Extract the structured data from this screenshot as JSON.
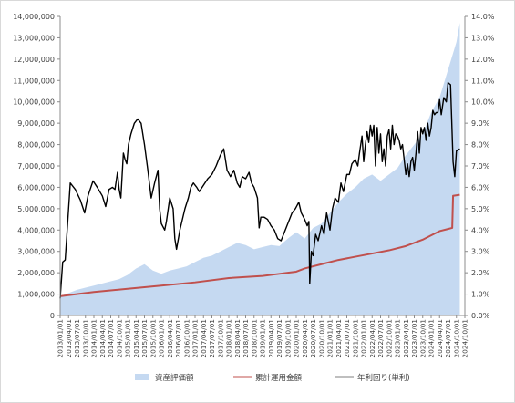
{
  "chart_data": {
    "type": "combo",
    "title": "",
    "xlabel": "",
    "ylabel": "",
    "ylim": [
      0,
      14000000
    ],
    "y2lim": [
      0,
      14.0
    ],
    "y_ticks": [
      "0",
      "1,000,000",
      "2,000,000",
      "3,000,000",
      "4,000,000",
      "5,000,000",
      "6,000,000",
      "7,000,000",
      "8,000,000",
      "9,000,000",
      "10,000,000",
      "11,000,000",
      "12,000,000",
      "13,000,000",
      "14,000,000"
    ],
    "y2_ticks": [
      "0.0%",
      "1.0%",
      "2.0%",
      "3.0%",
      "4.0%",
      "5.0%",
      "6.0%",
      "7.0%",
      "8.0%",
      "9.0%",
      "10.0%",
      "11.0%",
      "12.0%",
      "13.0%",
      "14.0%"
    ],
    "categories": [
      "2013/01/01",
      "2013/04/01",
      "2013/07/01",
      "2013/10/01",
      "2014/01/01",
      "2014/04/01",
      "2014/07/01",
      "2014/10/01",
      "2015/01/01",
      "2015/04/01",
      "2015/07/01",
      "2015/10/01",
      "2016/01/01",
      "2016/04/01",
      "2016/07/01",
      "2016/10/01",
      "2017/01/01",
      "2017/04/01",
      "2017/07/01",
      "2017/10/01",
      "2018/01/01",
      "2018/04/01",
      "2018/07/01",
      "2018/10/01",
      "2019/01/01",
      "2019/04/01",
      "2019/07/01",
      "2019/10/01",
      "2020/01/01",
      "2020/04/01",
      "2020/07/01",
      "2020/10/01",
      "2021/01/01",
      "2021/04/01",
      "2021/07/01",
      "2021/10/01",
      "2022/01/01",
      "2022/04/01",
      "2022/07/01",
      "2022/10/01",
      "2023/01/01",
      "2023/04/01",
      "2023/07/01",
      "2023/10/01",
      "2024/01/01",
      "2024/04/01",
      "2024/07/01",
      "2024/10/01",
      "2024/10/01"
    ],
    "legend_position": "bottom",
    "grid": false,
    "series": [
      {
        "name": "資産評価額",
        "type": "area",
        "axis": "left",
        "color": "#c5d9f1",
        "points": [
          [
            0,
            900000
          ],
          [
            1,
            1050000
          ],
          [
            2,
            1200000
          ],
          [
            3,
            1300000
          ],
          [
            4,
            1400000
          ],
          [
            5,
            1500000
          ],
          [
            6,
            1600000
          ],
          [
            7,
            1700000
          ],
          [
            8,
            1900000
          ],
          [
            9,
            2200000
          ],
          [
            10,
            2400000
          ],
          [
            11,
            2100000
          ],
          [
            12,
            1950000
          ],
          [
            13,
            2100000
          ],
          [
            14,
            2200000
          ],
          [
            15,
            2300000
          ],
          [
            16,
            2500000
          ],
          [
            17,
            2700000
          ],
          [
            18,
            2800000
          ],
          [
            19,
            3000000
          ],
          [
            20,
            3200000
          ],
          [
            21,
            3400000
          ],
          [
            22,
            3300000
          ],
          [
            23,
            3100000
          ],
          [
            24,
            3200000
          ],
          [
            25,
            3300000
          ],
          [
            26,
            3250000
          ],
          [
            27,
            3600000
          ],
          [
            28,
            3900000
          ],
          [
            29,
            3600000
          ],
          [
            30,
            4100000
          ],
          [
            31,
            4300000
          ],
          [
            32,
            4800000
          ],
          [
            33,
            5300000
          ],
          [
            34,
            5700000
          ],
          [
            35,
            6000000
          ],
          [
            36,
            6400000
          ],
          [
            37,
            6600000
          ],
          [
            38,
            6300000
          ],
          [
            39,
            6600000
          ],
          [
            40,
            6900000
          ],
          [
            41,
            7500000
          ],
          [
            42,
            8000000
          ],
          [
            43,
            8500000
          ],
          [
            44,
            9500000
          ],
          [
            45,
            10200000
          ],
          [
            46,
            11500000
          ],
          [
            47,
            12800000
          ],
          [
            47.4,
            13700000
          ]
        ]
      },
      {
        "name": "累計運用金額",
        "type": "line",
        "axis": "left",
        "color": "#c0504d",
        "points": [
          [
            0,
            900000
          ],
          [
            4,
            1100000
          ],
          [
            8,
            1250000
          ],
          [
            12,
            1400000
          ],
          [
            16,
            1550000
          ],
          [
            20,
            1750000
          ],
          [
            24,
            1850000
          ],
          [
            26,
            1950000
          ],
          [
            27,
            2000000
          ],
          [
            28,
            2050000
          ],
          [
            29,
            2200000
          ],
          [
            31,
            2400000
          ],
          [
            33,
            2600000
          ],
          [
            35,
            2750000
          ],
          [
            37,
            2900000
          ],
          [
            39,
            3050000
          ],
          [
            41,
            3250000
          ],
          [
            43,
            3550000
          ],
          [
            44,
            3750000
          ],
          [
            45,
            3950000
          ],
          [
            46,
            4050000
          ],
          [
            46.5,
            4100000
          ],
          [
            46.6,
            5600000
          ],
          [
            47.4,
            5650000
          ]
        ]
      },
      {
        "name": "年利回り(単利)",
        "type": "line",
        "axis": "right",
        "color": "#000000",
        "points": [
          [
            0,
            0.8
          ],
          [
            0.3,
            2.5
          ],
          [
            0.6,
            2.6
          ],
          [
            1,
            5.0
          ],
          [
            1.2,
            6.2
          ],
          [
            1.8,
            5.9
          ],
          [
            2.4,
            5.4
          ],
          [
            2.9,
            4.8
          ],
          [
            3.3,
            5.6
          ],
          [
            3.9,
            6.3
          ],
          [
            4.4,
            6.0
          ],
          [
            5,
            5.6
          ],
          [
            5.4,
            5.1
          ],
          [
            5.8,
            5.9
          ],
          [
            6.2,
            6.0
          ],
          [
            6.5,
            5.9
          ],
          [
            6.8,
            6.7
          ],
          [
            7,
            5.9
          ],
          [
            7.2,
            5.5
          ],
          [
            7.5,
            7.6
          ],
          [
            7.7,
            7.3
          ],
          [
            7.9,
            7.1
          ],
          [
            8.1,
            8.0
          ],
          [
            8.4,
            8.5
          ],
          [
            8.8,
            9.0
          ],
          [
            9.2,
            9.2
          ],
          [
            9.6,
            9.0
          ],
          [
            10,
            8.0
          ],
          [
            10.4,
            6.8
          ],
          [
            10.8,
            5.5
          ],
          [
            11.2,
            6.2
          ],
          [
            11.6,
            6.8
          ],
          [
            11.8,
            5.0
          ],
          [
            12,
            4.3
          ],
          [
            12.4,
            4.0
          ],
          [
            12.6,
            4.4
          ],
          [
            13,
            5.5
          ],
          [
            13.4,
            5.0
          ],
          [
            13.6,
            3.6
          ],
          [
            13.8,
            3.1
          ],
          [
            14.2,
            4.0
          ],
          [
            14.8,
            5.0
          ],
          [
            15.2,
            5.5
          ],
          [
            15.5,
            6.0
          ],
          [
            15.8,
            6.2
          ],
          [
            16.2,
            6.0
          ],
          [
            16.5,
            5.8
          ],
          [
            17,
            6.1
          ],
          [
            17.5,
            6.4
          ],
          [
            18,
            6.6
          ],
          [
            18.5,
            7.0
          ],
          [
            19,
            7.5
          ],
          [
            19.4,
            7.8
          ],
          [
            19.8,
            6.8
          ],
          [
            20.2,
            6.5
          ],
          [
            20.6,
            6.8
          ],
          [
            21,
            6.2
          ],
          [
            21.3,
            6.0
          ],
          [
            21.6,
            6.5
          ],
          [
            22,
            6.4
          ],
          [
            22.4,
            6.7
          ],
          [
            22.7,
            6.2
          ],
          [
            23,
            6.0
          ],
          [
            23.4,
            5.5
          ],
          [
            23.6,
            4.1
          ],
          [
            23.8,
            4.6
          ],
          [
            24.2,
            4.6
          ],
          [
            24.6,
            4.5
          ],
          [
            25,
            4.2
          ],
          [
            25.4,
            4.0
          ],
          [
            25.8,
            3.6
          ],
          [
            26.2,
            3.5
          ],
          [
            26.6,
            3.9
          ],
          [
            27,
            4.3
          ],
          [
            27.5,
            4.8
          ],
          [
            27.9,
            5.0
          ],
          [
            28.3,
            5.3
          ],
          [
            28.6,
            4.8
          ],
          [
            29,
            4.5
          ],
          [
            29.3,
            4.2
          ],
          [
            29.5,
            4.4
          ],
          [
            29.6,
            1.5
          ],
          [
            29.8,
            3.0
          ],
          [
            30,
            2.8
          ],
          [
            30.3,
            3.8
          ],
          [
            30.6,
            3.5
          ],
          [
            31,
            4.2
          ],
          [
            31.3,
            3.8
          ],
          [
            31.6,
            4.8
          ],
          [
            32,
            4.0
          ],
          [
            32.3,
            5.0
          ],
          [
            32.6,
            5.5
          ],
          [
            33,
            5.3
          ],
          [
            33.3,
            6.2
          ],
          [
            33.6,
            5.8
          ],
          [
            34,
            6.6
          ],
          [
            34.3,
            6.6
          ],
          [
            34.6,
            7.1
          ],
          [
            35,
            7.3
          ],
          [
            35.3,
            7.0
          ],
          [
            35.5,
            7.6
          ],
          [
            35.8,
            8.4
          ],
          [
            36,
            7.2
          ],
          [
            36.2,
            8.0
          ],
          [
            36.4,
            8.6
          ],
          [
            36.6,
            8.1
          ],
          [
            36.8,
            8.9
          ],
          [
            37,
            8.4
          ],
          [
            37.2,
            8.9
          ],
          [
            37.4,
            7.0
          ],
          [
            37.6,
            8.8
          ],
          [
            37.8,
            7.6
          ],
          [
            38,
            8.5
          ],
          [
            38.2,
            7.2
          ],
          [
            38.4,
            7.8
          ],
          [
            38.6,
            7.0
          ],
          [
            38.8,
            8.4
          ],
          [
            39,
            8.7
          ],
          [
            39.2,
            7.8
          ],
          [
            39.4,
            8.9
          ],
          [
            39.6,
            8.0
          ],
          [
            39.8,
            8.5
          ],
          [
            40,
            8.4
          ],
          [
            40.2,
            8.2
          ],
          [
            40.4,
            7.8
          ],
          [
            40.6,
            8.0
          ],
          [
            40.8,
            7.3
          ],
          [
            41,
            6.6
          ],
          [
            41.2,
            7.1
          ],
          [
            41.4,
            6.5
          ],
          [
            41.6,
            7.2
          ],
          [
            41.8,
            7.4
          ],
          [
            42,
            6.8
          ],
          [
            42.2,
            7.6
          ],
          [
            42.4,
            8.6
          ],
          [
            42.6,
            7.6
          ],
          [
            42.8,
            8.8
          ],
          [
            43,
            8.5
          ],
          [
            43.2,
            8.8
          ],
          [
            43.4,
            8.2
          ],
          [
            43.6,
            9.0
          ],
          [
            43.8,
            8.4
          ],
          [
            44,
            8.8
          ],
          [
            44.2,
            9.6
          ],
          [
            44.4,
            9.4
          ],
          [
            44.6,
            9.5
          ],
          [
            44.8,
            9.5
          ],
          [
            45,
            10.1
          ],
          [
            45.2,
            9.4
          ],
          [
            45.5,
            10.2
          ],
          [
            45.8,
            10.0
          ],
          [
            46,
            10.9
          ],
          [
            46.3,
            10.8
          ],
          [
            46.6,
            7.2
          ],
          [
            46.8,
            6.5
          ],
          [
            47,
            7.7
          ],
          [
            47.4,
            7.8
          ]
        ]
      }
    ]
  }
}
